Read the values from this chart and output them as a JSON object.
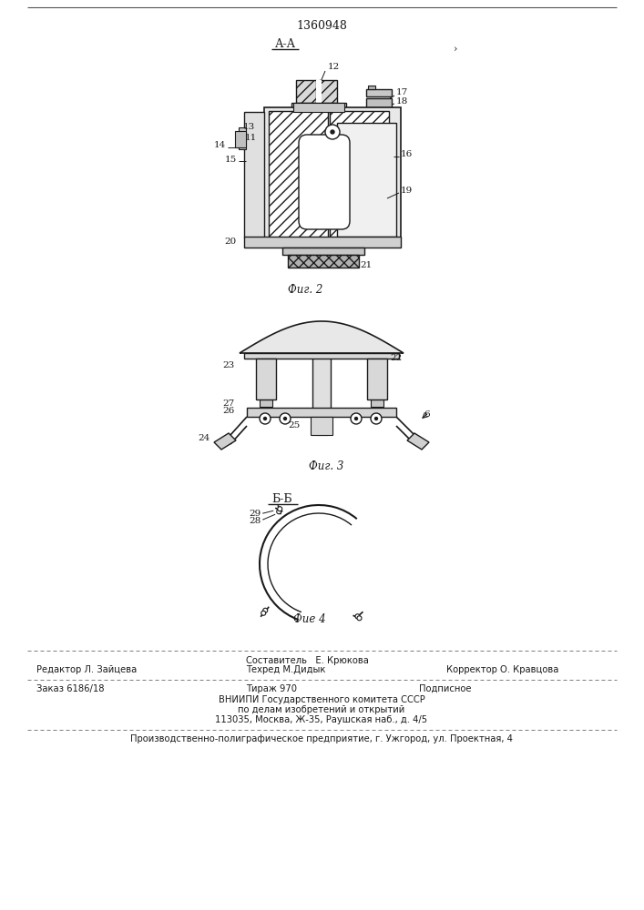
{
  "patent_number": "1360948",
  "fig2_label": "А-А",
  "fig2_caption": "Фиг. 2",
  "fig3_caption": "Фиг. 3",
  "fig4_label": "Б-Б",
  "fig4_caption": "Фие 4",
  "footer_line1_left": "Редактор Л. Зайцева",
  "footer_line1_center": "Составитель   Е. Крюкова",
  "footer_line1_right": "Корректор О. Кравцова",
  "footer_line2_center": "Техред М.Дидык",
  "footer_line3_left": "Заказ 6186/18",
  "footer_line3_center": "Тираж 970",
  "footer_line3_right": "Подписное",
  "footer_line4": "ВНИИПИ Государственного комитета СССР",
  "footer_line5": "по делам изобретений и открытий",
  "footer_line6": "113035, Москва, Ж-35, Раушская наб., д. 4/5",
  "footer_line7": "Производственно-полиграфическое предприятие, г. Ужгород, ул. Проектная, 4",
  "bg_color": "#ffffff",
  "line_color": "#1a1a1a"
}
